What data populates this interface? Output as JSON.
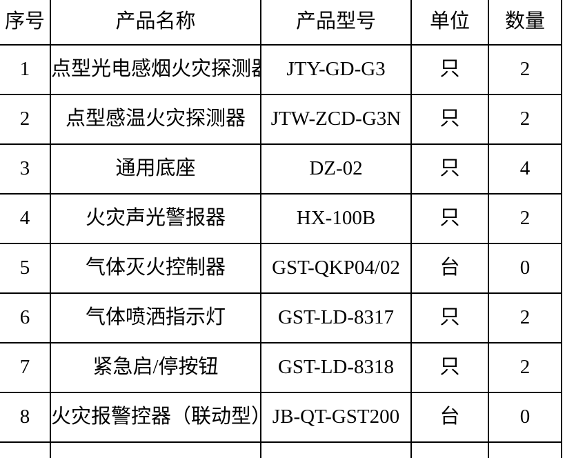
{
  "table": {
    "headers": [
      "序号",
      "产品名称",
      "产品型号",
      "单位",
      "数量"
    ],
    "rows": [
      [
        "1",
        "点型光电感烟火灾探测器",
        "JTY-GD-G3",
        "只",
        "2"
      ],
      [
        "2",
        "点型感温火灾探测器",
        "JTW-ZCD-G3N",
        "只",
        "2"
      ],
      [
        "3",
        "通用底座",
        "DZ-02",
        "只",
        "4"
      ],
      [
        "4",
        "火灾声光警报器",
        "HX-100B",
        "只",
        "2"
      ],
      [
        "5",
        "气体灭火控制器",
        "GST-QKP04/02",
        "台",
        "0"
      ],
      [
        "6",
        "气体喷洒指示灯",
        "GST-LD-8317",
        "只",
        "2"
      ],
      [
        "7",
        "紧急启/停按钮",
        "GST-LD-8318",
        "只",
        "2"
      ],
      [
        "8",
        "火灾报警控器（联动型）",
        "JB-QT-GST200",
        "台",
        "0"
      ]
    ]
  },
  "colors": {
    "border": "#000000",
    "text": "#000000",
    "background": "#ffffff"
  }
}
